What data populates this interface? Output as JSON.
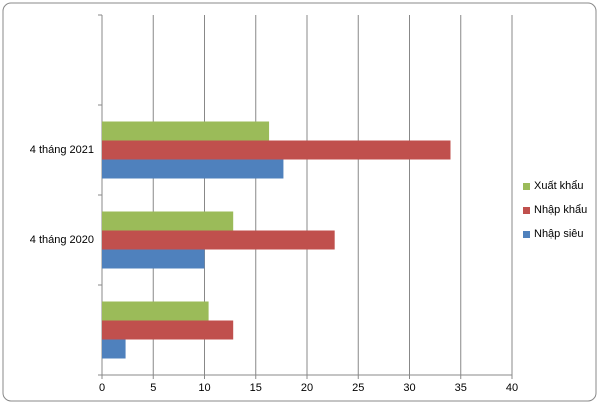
{
  "chart_data": {
    "type": "hbar",
    "categories": [
      null,
      "4 tháng 2021",
      "4 tháng 2020",
      null
    ],
    "series": [
      {
        "name": "Xuất khẩu",
        "color": "#9bbb59",
        "values": [
          null,
          16.3,
          12.8,
          10.4
        ]
      },
      {
        "name": "Nhập khẩu",
        "color": "#c0504d",
        "values": [
          null,
          34.0,
          22.7,
          12.8
        ]
      },
      {
        "name": "Nhập siêu",
        "color": "#4f81bd",
        "values": [
          null,
          17.7,
          10.0,
          2.3
        ]
      }
    ],
    "xlim": [
      0,
      40
    ],
    "xticks": [
      0,
      5,
      10,
      15,
      20,
      25,
      30,
      35,
      40
    ],
    "grid": true,
    "legend": "right"
  }
}
